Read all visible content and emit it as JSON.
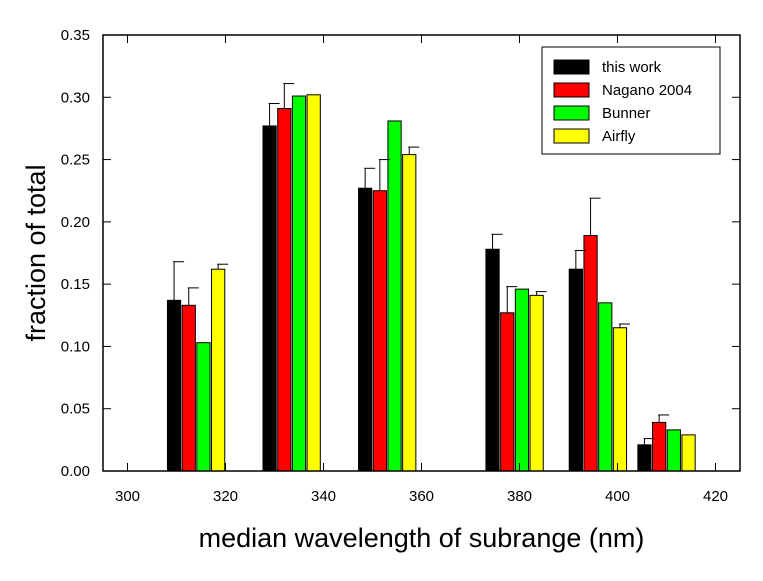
{
  "chart_data": {
    "type": "bar",
    "title": "",
    "xlabel": "median wavelength of subrange (nm)",
    "ylabel": "fraction of total",
    "xlim": [
      295,
      425
    ],
    "ylim": [
      0,
      0.35
    ],
    "xticks": [
      300,
      320,
      340,
      360,
      380,
      400,
      420
    ],
    "xtick_labels": [
      "300",
      "320",
      "340",
      "360",
      "380",
      "400",
      "420"
    ],
    "yticks": [
      0,
      0.05,
      0.1,
      0.15,
      0.2,
      0.25,
      0.3,
      0.35
    ],
    "ytick_labels": [
      "0.00",
      "0.05",
      "0.10",
      "0.15",
      "0.20",
      "0.25",
      "0.30",
      "0.35"
    ],
    "grid": false,
    "legend_position": "top-right",
    "groups_x": [
      314,
      333.5,
      353,
      380,
      396,
      411
    ],
    "series": [
      {
        "name": "this work",
        "color": "#000000",
        "x": [
          309.5,
          329,
          348.5,
          374.5,
          391.5,
          405.5
        ],
        "values": [
          0.137,
          0.277,
          0.227,
          0.178,
          0.162,
          0.021
        ],
        "errors": [
          0.031,
          0.018,
          0.016,
          0.012,
          0.015,
          0.005
        ]
      },
      {
        "name": "Nagano 2004",
        "color": "#ff0000",
        "x": [
          312.5,
          332,
          351.5,
          377.5,
          394.5,
          408.5
        ],
        "values": [
          0.133,
          0.291,
          0.225,
          0.127,
          0.189,
          0.039
        ],
        "errors": [
          0.014,
          0.02,
          0.025,
          0.021,
          0.03,
          0.006
        ]
      },
      {
        "name": "Bunner",
        "color": "#00ff00",
        "x": [
          315.5,
          335,
          354.5,
          380.5,
          397.5,
          411.5
        ],
        "values": [
          0.103,
          0.301,
          0.281,
          0.146,
          0.135,
          0.033
        ],
        "errors": [
          0,
          0,
          0,
          0,
          0,
          0
        ]
      },
      {
        "name": "Airfly",
        "color": "#ffff00",
        "x": [
          318.5,
          338,
          357.5,
          383.5,
          400.5,
          414.5
        ],
        "values": [
          0.162,
          0.302,
          0.254,
          0.141,
          0.115,
          0.029
        ],
        "errors": [
          0.004,
          0.0,
          0.006,
          0.003,
          0.003,
          0.0
        ]
      }
    ]
  }
}
